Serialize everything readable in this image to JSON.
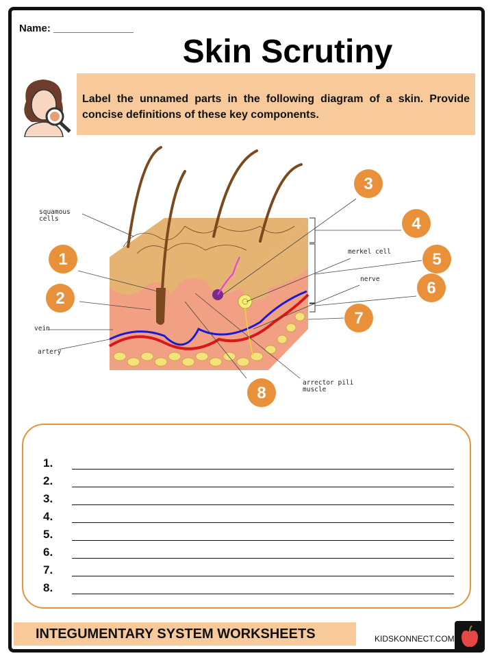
{
  "header": {
    "name_label": "Name: ______________",
    "title": "Skin Scrutiny",
    "instructions": "Label the unnamed parts in the following diagram of a skin. Provide concise definitions of these key components."
  },
  "diagram": {
    "labels": {
      "squamous": "squamous",
      "cells": "cells",
      "merkel_cell": "merkel cell",
      "nerve": "nerve",
      "vein": "vein",
      "artery": "artery",
      "arrector": "arrector pili",
      "muscle": "muscle"
    },
    "markers": [
      "1",
      "2",
      "3",
      "4",
      "5",
      "6",
      "7",
      "8"
    ],
    "marker_color": "#E8913A"
  },
  "answers": {
    "numbers": [
      "1.",
      "2.",
      "3.",
      "4.",
      "5.",
      "6.",
      "7.",
      "8."
    ]
  },
  "footer": {
    "banner": "INTEGUMENTARY SYSTEM WORKSHEETS",
    "site": "KIDSKONNECT.COM",
    "logo": "apple-icon"
  }
}
